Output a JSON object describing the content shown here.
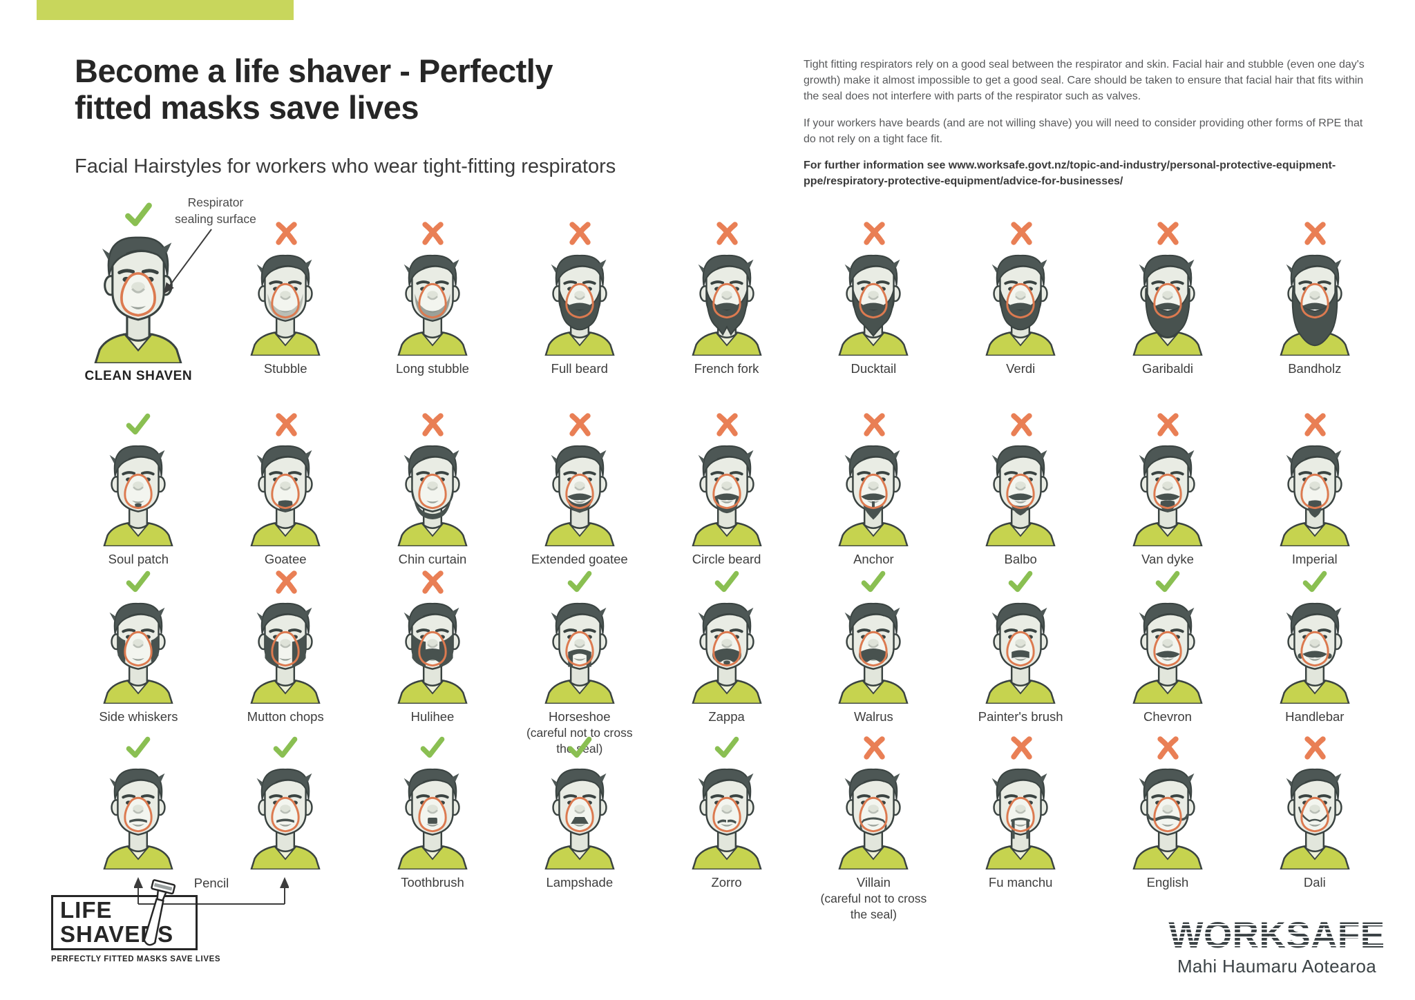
{
  "page": {
    "title_lines": [
      "Become a life shaver - Perfectly",
      "fitted masks save lives"
    ],
    "subtitle": "Facial Hairstyles for workers who wear tight-fitting respirators"
  },
  "info": {
    "para1": "Tight fitting respirators rely on a good seal between the respirator and skin. Facial hair and stubble (even one day's growth) make it almost impossible to get a good seal. Care should be taken to ensure that facial hair that fits within the seal does not interfere with parts of the respirator such as valves.",
    "para2": "If your workers have beards  (and are not willing shave) you will need to consider providing other forms of RPE that do not rely on a tight face fit.",
    "para3": "For further information see www.worksafe.govt.nz/topic-and-industry/personal-protective-equipment-ppe/respiratory-protective-equipment/advice-for-businesses/"
  },
  "annotation": {
    "lines": [
      "Respirator",
      "sealing surface"
    ]
  },
  "colors": {
    "check": "#8abf52",
    "cross": "#e97f55",
    "seal": "#dc7a50",
    "hair": "#4d5755",
    "outline": "#3a4341",
    "skin": "#e9ece4",
    "skin_shade": "#e2e6dc",
    "shirt": "#c6d34f",
    "shirt_light": "#eef1d8",
    "accent_bar": "#c8d65c",
    "beard": "#48524f",
    "stubble_light": "#aeb4ab",
    "stubble_dark": "#8b928a"
  },
  "grid": {
    "pencil_label": "Pencil",
    "rows": [
      [
        {
          "label": "CLEAN SHAVEN",
          "mark": "check",
          "variant": "clean",
          "emphasis": true
        },
        {
          "label": "Stubble",
          "mark": "cross",
          "variant": "stubble"
        },
        {
          "label": "Long stubble",
          "mark": "cross",
          "variant": "stubble2"
        },
        {
          "label": "Full beard",
          "mark": "cross",
          "variant": "beard"
        },
        {
          "label": "French fork",
          "mark": "cross",
          "variant": "beardfork"
        },
        {
          "label": "Ducktail",
          "mark": "cross",
          "variant": "beardpoint"
        },
        {
          "label": "Verdi",
          "mark": "cross",
          "variant": "beard"
        },
        {
          "label": "Garibaldi",
          "mark": "cross",
          "variant": "beardbig"
        },
        {
          "label": "Bandholz",
          "mark": "cross",
          "variant": "beardhuge"
        }
      ],
      [
        {
          "label": "Soul patch",
          "mark": "check",
          "variant": "soul"
        },
        {
          "label": "Goatee",
          "mark": "cross",
          "variant": "goatee"
        },
        {
          "label": "Chin curtain",
          "mark": "cross",
          "variant": "chincurtain"
        },
        {
          "label": "Extended goatee",
          "mark": "cross",
          "variant": "extgoatee"
        },
        {
          "label": "Circle beard",
          "mark": "cross",
          "variant": "circle"
        },
        {
          "label": "Anchor",
          "mark": "cross",
          "variant": "anchor"
        },
        {
          "label": "Balbo",
          "mark": "cross",
          "variant": "balbo"
        },
        {
          "label": "Van dyke",
          "mark": "cross",
          "variant": "vandyke"
        },
        {
          "label": "Imperial",
          "mark": "cross",
          "variant": "imperial"
        }
      ],
      [
        {
          "label": "Side whiskers",
          "mark": "check",
          "variant": "sideburns"
        },
        {
          "label": "Mutton chops",
          "mark": "cross",
          "variant": "chops"
        },
        {
          "label": "Hulihee",
          "mark": "cross",
          "variant": "hulihee"
        },
        {
          "label": "Horseshoe",
          "mark": "check",
          "variant": "horseshoe",
          "note": "(careful not to cross the seal)"
        },
        {
          "label": "Zappa",
          "mark": "check",
          "variant": "zappa"
        },
        {
          "label": "Walrus",
          "mark": "check",
          "variant": "walrus"
        },
        {
          "label": "Painter's brush",
          "mark": "check",
          "variant": "brush"
        },
        {
          "label": "Chevron",
          "mark": "check",
          "variant": "chevron"
        },
        {
          "label": "Handlebar",
          "mark": "check",
          "variant": "handlebar"
        }
      ],
      [
        {
          "label": "",
          "mark": "check",
          "variant": "pencil"
        },
        {
          "label": "",
          "mark": "check",
          "variant": "pencil"
        },
        {
          "label": "Toothbrush",
          "mark": "check",
          "variant": "toothbrush"
        },
        {
          "label": "Lampshade",
          "mark": "check",
          "variant": "lampshade"
        },
        {
          "label": "Zorro",
          "mark": "check",
          "variant": "zorro"
        },
        {
          "label": "Villain",
          "mark": "cross",
          "variant": "villain",
          "note": "(careful not to cross the seal)"
        },
        {
          "label": "Fu manchu",
          "mark": "cross",
          "variant": "fu"
        },
        {
          "label": "English",
          "mark": "cross",
          "variant": "english"
        },
        {
          "label": "Dali",
          "mark": "cross",
          "variant": "dali"
        }
      ]
    ]
  },
  "footer": {
    "lifeshavers": {
      "line1": "LIFE",
      "line2": "SHAVERS",
      "tagline": "PERFECTLY FITTED MASKS SAVE LIVES"
    },
    "worksafe": {
      "wordmark": "WORKSAFE",
      "tagline": "Mahi Haumaru Aotearoa"
    }
  }
}
